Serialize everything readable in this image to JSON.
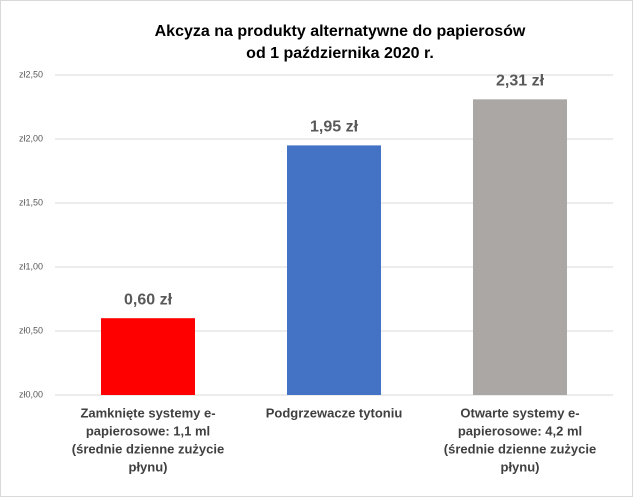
{
  "chart_data": {
    "type": "bar",
    "title": [
      "Akcyza na produkty alternatywne do papierosów",
      "od 1 października 2020 r."
    ],
    "categories": [
      [
        "Zamknięte systemy e-",
        "papierosowe: 1,1 ml",
        "(średnie dzienne zużycie",
        "płynu)"
      ],
      [
        "Podgrzewacze tytoniu"
      ],
      [
        "Otwarte systemy e-",
        "papierosowe: 4,2 ml",
        "(średnie dzienne zużycie",
        "płynu)"
      ]
    ],
    "values": [
      0.6,
      1.95,
      2.31
    ],
    "value_labels": [
      "0,60 zł",
      "1,95 zł",
      "2,31 zł"
    ],
    "colors": [
      "#ff0000",
      "#4472c4",
      "#aba7a5"
    ],
    "ylim": [
      0,
      2.5
    ],
    "yticks": [
      {
        "value": 0,
        "label": "zł0,00"
      },
      {
        "value": 0.5,
        "label": "zł0,50"
      },
      {
        "value": 1,
        "label": "zł1,00"
      },
      {
        "value": 1.5,
        "label": "zł1,50"
      },
      {
        "value": 2,
        "label": "zł2,00"
      },
      {
        "value": 2.5,
        "label": "zł2,50"
      }
    ],
    "grid": true
  }
}
